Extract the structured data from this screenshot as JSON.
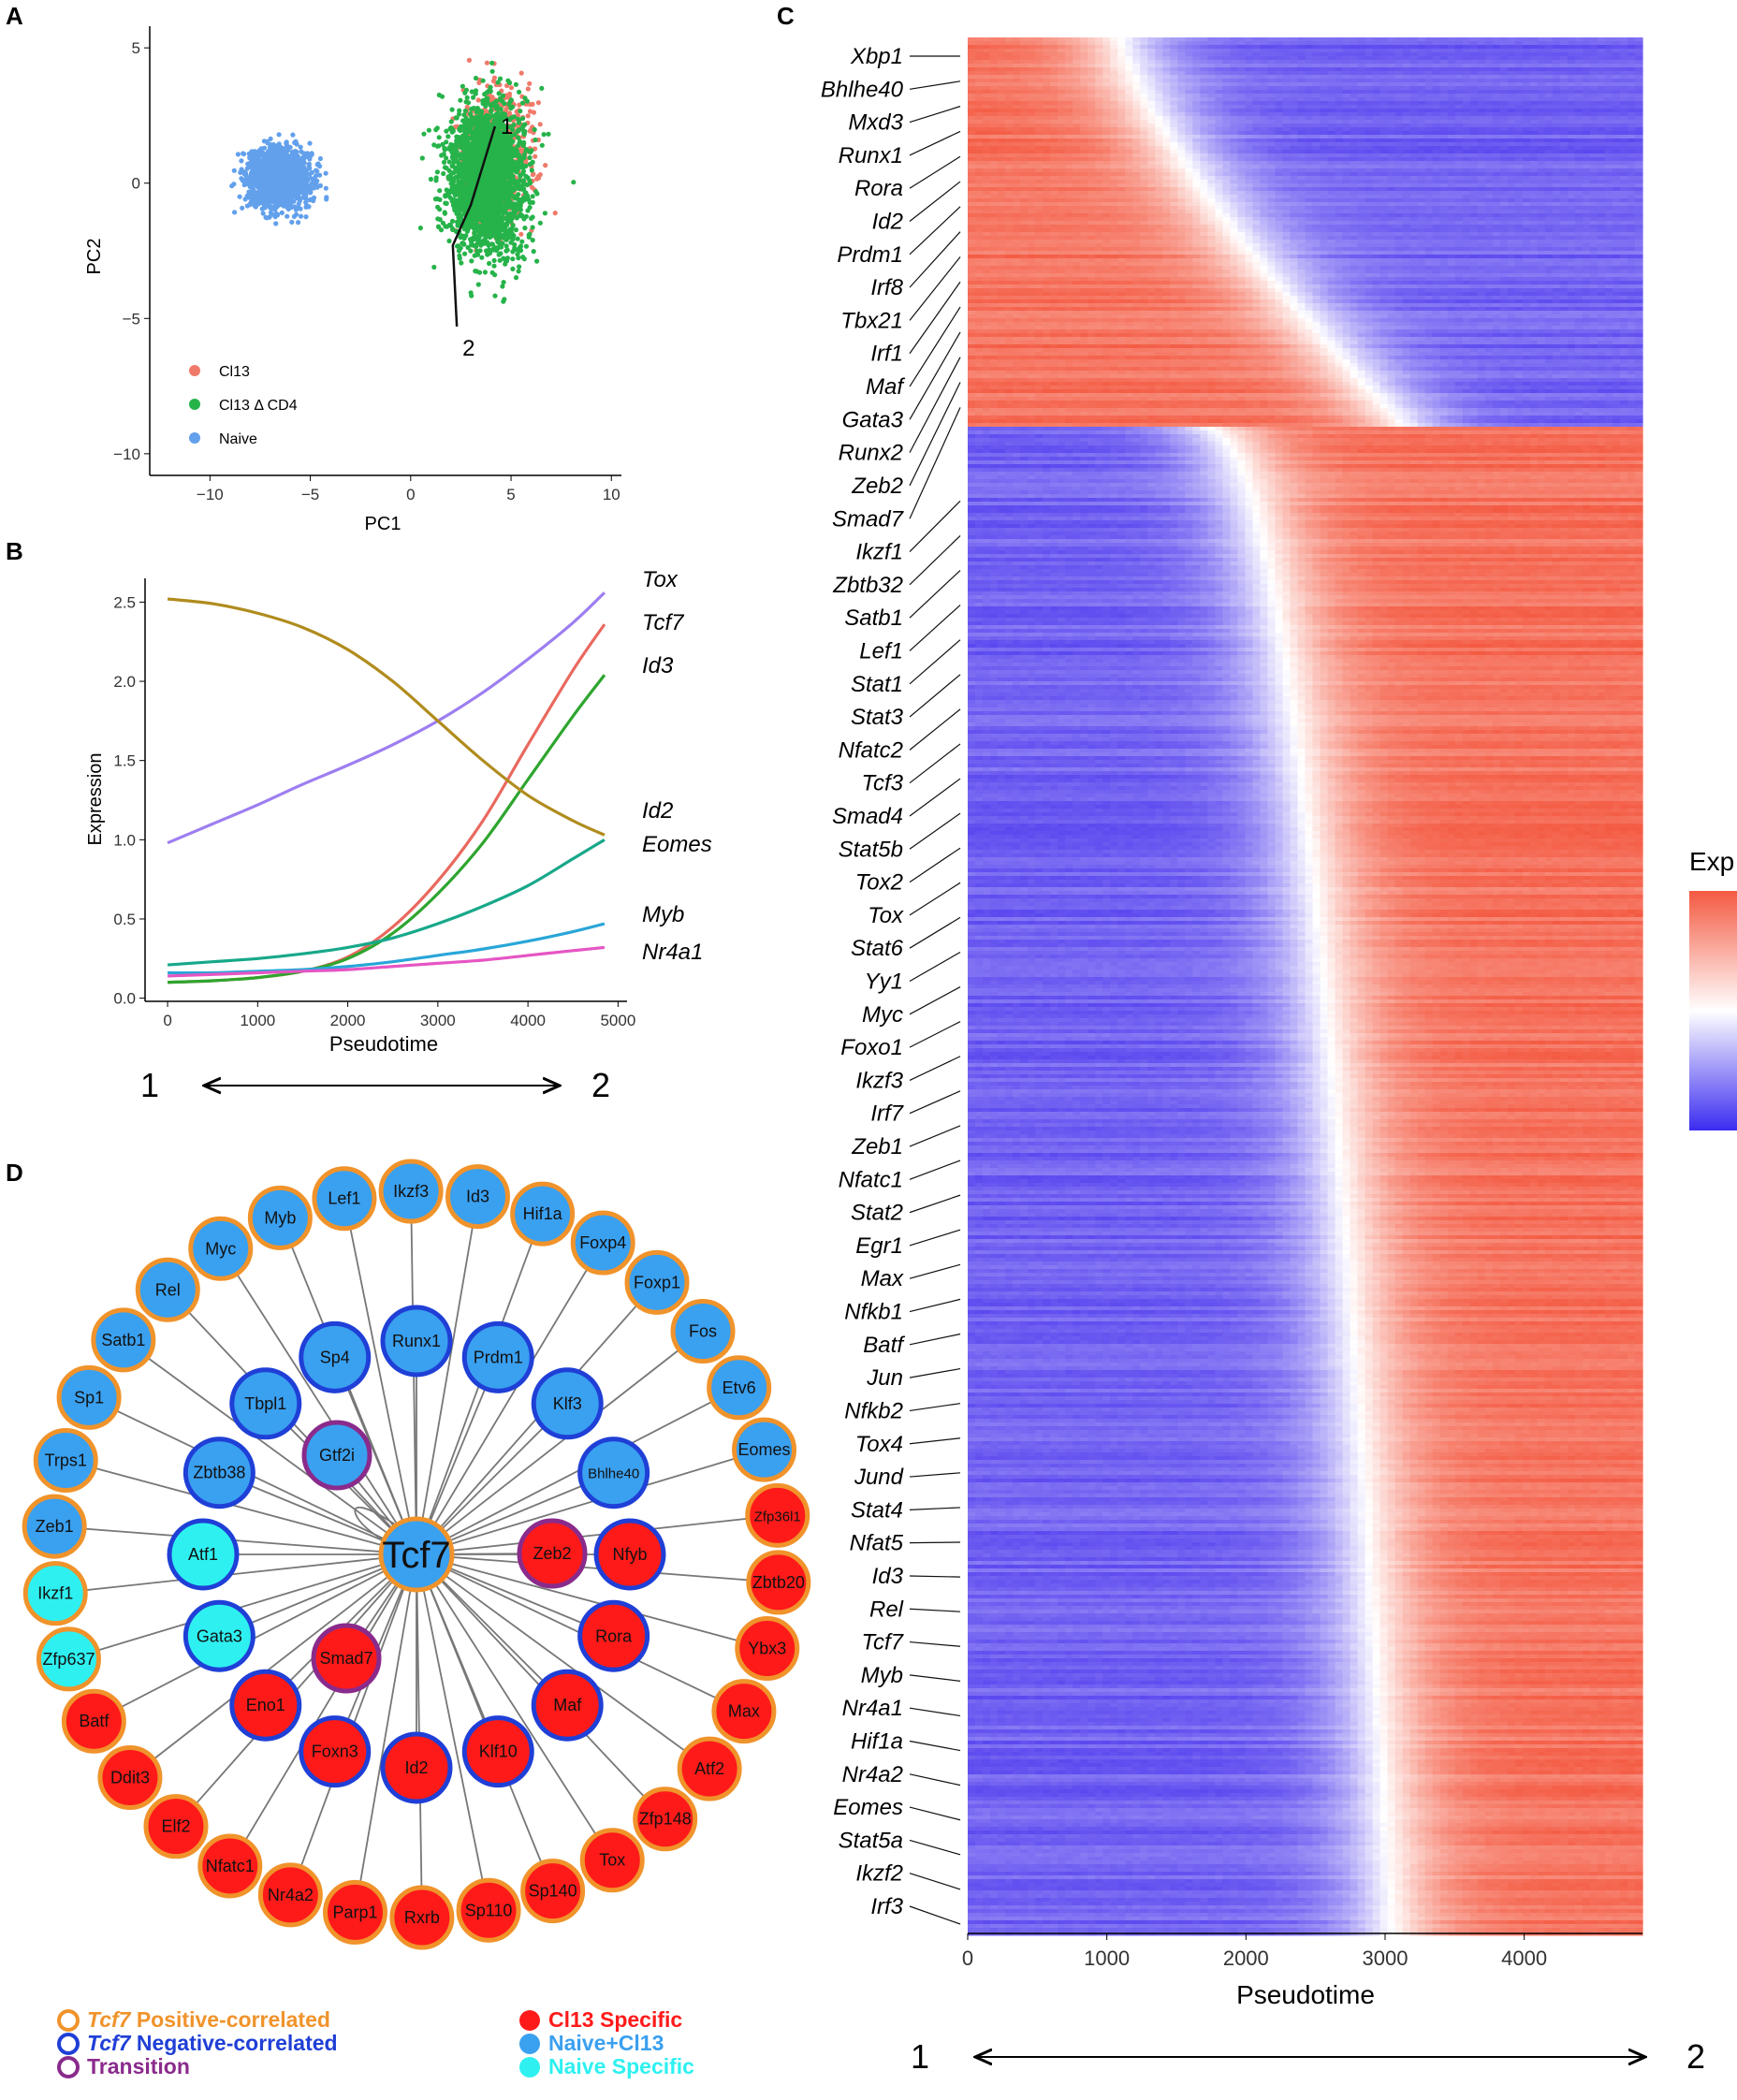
{
  "panel_letters": [
    "A",
    "B",
    "C",
    "D"
  ],
  "trajectory_ends": {
    "start": "1",
    "end": "2"
  },
  "chart_data": [
    {
      "panel": "A",
      "type": "scatter",
      "xlabel": "PC1",
      "ylabel": "PC2",
      "xlim": [
        -13,
        10.5
      ],
      "ylim": [
        -10.8,
        5.8
      ],
      "xticks": [
        -10,
        -5,
        0,
        5,
        10
      ],
      "yticks": [
        5,
        0,
        -5,
        -10
      ],
      "grid": false,
      "legend_position": "bottom-left",
      "series": [
        {
          "name": "Cl13",
          "color": "#f07a6a",
          "center": [
            4.3,
            1.2
          ],
          "spread": [
            1.6,
            2.2
          ],
          "count": 700
        },
        {
          "name": "Cl13 Δ CD4",
          "color": "#26b34a",
          "center": [
            3.8,
            0.2
          ],
          "spread": [
            1.7,
            2.4
          ],
          "count": 2600
        },
        {
          "name": "Naive",
          "color": "#62a0ec",
          "center": [
            -6.6,
            0.2
          ],
          "spread": [
            1.4,
            0.95
          ],
          "count": 1700
        }
      ],
      "trajectory": {
        "points": [
          [
            4.2,
            2.1
          ],
          [
            3.0,
            -0.8
          ],
          [
            2.1,
            -2.3
          ],
          [
            2.3,
            -5.3
          ]
        ],
        "labels": [
          {
            "text": "1",
            "x": 4.2,
            "y": 2.1
          },
          {
            "text": "2",
            "x": 2.3,
            "y": -6.1
          }
        ]
      }
    },
    {
      "panel": "B",
      "type": "line",
      "xlabel": "Pseudotime",
      "ylabel": "Expression",
      "xlim": [
        -250,
        5100
      ],
      "ylim": [
        -0.02,
        2.65
      ],
      "xticks": [
        0,
        1000,
        2000,
        3000,
        4000,
        5000
      ],
      "yticks": [
        0.0,
        0.5,
        1.0,
        1.5,
        2.0,
        2.5
      ],
      "x": [
        0,
        500,
        1000,
        1500,
        2000,
        2500,
        3000,
        3500,
        4000,
        4500,
        4850
      ],
      "series": [
        {
          "name": "Tox",
          "color": "#9d7ef0",
          "values": [
            0.98,
            1.1,
            1.22,
            1.35,
            1.47,
            1.6,
            1.75,
            1.93,
            2.14,
            2.37,
            2.56
          ]
        },
        {
          "name": "Tcf7",
          "color": "#e9695f",
          "values": [
            0.1,
            0.11,
            0.13,
            0.17,
            0.26,
            0.45,
            0.74,
            1.12,
            1.6,
            2.07,
            2.36
          ]
        },
        {
          "name": "Id3",
          "color": "#2ea52e",
          "values": [
            0.1,
            0.11,
            0.13,
            0.17,
            0.25,
            0.41,
            0.66,
            0.98,
            1.38,
            1.78,
            2.04
          ]
        },
        {
          "name": "Id2",
          "color": "#b08c1e",
          "values": [
            2.52,
            2.49,
            2.43,
            2.34,
            2.2,
            2.0,
            1.75,
            1.5,
            1.28,
            1.12,
            1.03
          ]
        },
        {
          "name": "Eomes",
          "color": "#17a88a",
          "values": [
            0.21,
            0.23,
            0.25,
            0.28,
            0.32,
            0.38,
            0.47,
            0.58,
            0.71,
            0.88,
            1.0
          ]
        },
        {
          "name": "Myb",
          "color": "#29a6d8",
          "values": [
            0.16,
            0.16,
            0.17,
            0.18,
            0.2,
            0.23,
            0.27,
            0.31,
            0.36,
            0.42,
            0.47
          ]
        },
        {
          "name": "Nr4a1",
          "color": "#e655c4",
          "values": [
            0.14,
            0.15,
            0.16,
            0.17,
            0.18,
            0.2,
            0.22,
            0.24,
            0.27,
            0.3,
            0.32
          ]
        }
      ]
    },
    {
      "panel": "C",
      "type": "heatmap",
      "xlabel": "Pseudotime",
      "xlim": [
        0,
        4850
      ],
      "xticks": [
        0,
        1000,
        2000,
        3000,
        4000
      ],
      "legend_title": "Exp",
      "colors": {
        "high": "#f45a42",
        "mid": "#ffffff",
        "low": "#5a48ef"
      },
      "gene_labels": [
        "Xbp1",
        "Bhlhe40",
        "Mxd3",
        "Runx1",
        "Rora",
        "Id2",
        "Prdm1",
        "Irf8",
        "Tbx21",
        "Irf1",
        "Maf",
        "Gata3",
        "Runx2",
        "Zeb2",
        "Smad7",
        "Ikzf1",
        "Zbtb32",
        "Satb1",
        "Lef1",
        "Stat1",
        "Stat3",
        "Nfatc2",
        "Tcf3",
        "Smad4",
        "Stat5b",
        "Tox2",
        "Tox",
        "Stat6",
        "Yy1",
        "Myc",
        "Foxo1",
        "Ikzf3",
        "Irf7",
        "Zeb1",
        "Nfatc1",
        "Stat2",
        "Egr1",
        "Max",
        "Nfkb1",
        "Batf",
        "Jun",
        "Nfkb2",
        "Tox4",
        "Jund",
        "Stat4",
        "Nfat5",
        "Id3",
        "Rel",
        "Tcf7",
        "Myb",
        "Nr4a1",
        "Hif1a",
        "Nr4a2",
        "Eomes",
        "Stat5a",
        "Ikzf2",
        "Irf3"
      ],
      "blocks": [
        {
          "direction": "decreasing",
          "row_fraction": 0.205,
          "transition_pseudotime": [
            1100,
            3150
          ]
        },
        {
          "direction": "increasing",
          "row_fraction": 0.795,
          "transition_pseudotime": [
            1700,
            3050
          ]
        }
      ]
    },
    {
      "panel": "D",
      "type": "network",
      "center": "Tcf7",
      "outer_ring": [
        {
          "label": "Lef1",
          "fill": "naive_cl13",
          "ring": "positive"
        },
        {
          "label": "Ikzf3",
          "fill": "naive_cl13",
          "ring": "positive"
        },
        {
          "label": "Id3",
          "fill": "naive_cl13",
          "ring": "positive"
        },
        {
          "label": "Hif1a",
          "fill": "naive_cl13",
          "ring": "positive"
        },
        {
          "label": "Foxp4",
          "fill": "naive_cl13",
          "ring": "positive"
        },
        {
          "label": "Foxp1",
          "fill": "naive_cl13",
          "ring": "positive"
        },
        {
          "label": "Fos",
          "fill": "naive_cl13",
          "ring": "positive"
        },
        {
          "label": "Etv6",
          "fill": "naive_cl13",
          "ring": "positive"
        },
        {
          "label": "Eomes",
          "fill": "naive_cl13",
          "ring": "positive"
        },
        {
          "label": "Zfp36l1",
          "fill": "cl13",
          "ring": "positive"
        },
        {
          "label": "Zbtb20",
          "fill": "cl13",
          "ring": "positive"
        },
        {
          "label": "Ybx3",
          "fill": "cl13",
          "ring": "positive"
        },
        {
          "label": "Max",
          "fill": "cl13",
          "ring": "positive"
        },
        {
          "label": "Atf2",
          "fill": "cl13",
          "ring": "positive"
        },
        {
          "label": "Zfp148",
          "fill": "cl13",
          "ring": "positive"
        },
        {
          "label": "Tox",
          "fill": "cl13",
          "ring": "positive"
        },
        {
          "label": "Sp140",
          "fill": "cl13",
          "ring": "positive"
        },
        {
          "label": "Sp110",
          "fill": "cl13",
          "ring": "positive"
        },
        {
          "label": "Rxrb",
          "fill": "cl13",
          "ring": "positive"
        },
        {
          "label": "Parp1",
          "fill": "cl13",
          "ring": "positive"
        },
        {
          "label": "Nr4a2",
          "fill": "cl13",
          "ring": "positive"
        },
        {
          "label": "Nfatc1",
          "fill": "cl13",
          "ring": "positive"
        },
        {
          "label": "Elf2",
          "fill": "cl13",
          "ring": "positive"
        },
        {
          "label": "Ddit3",
          "fill": "cl13",
          "ring": "positive"
        },
        {
          "label": "Batf",
          "fill": "cl13",
          "ring": "positive"
        },
        {
          "label": "Zfp637",
          "fill": "naive",
          "ring": "positive"
        },
        {
          "label": "Ikzf1",
          "fill": "naive",
          "ring": "positive"
        },
        {
          "label": "Zeb1",
          "fill": "naive_cl13",
          "ring": "positive"
        },
        {
          "label": "Trps1",
          "fill": "naive_cl13",
          "ring": "positive"
        },
        {
          "label": "Sp1",
          "fill": "naive_cl13",
          "ring": "positive"
        },
        {
          "label": "Satb1",
          "fill": "naive_cl13",
          "ring": "positive"
        },
        {
          "label": "Rel",
          "fill": "naive_cl13",
          "ring": "positive"
        },
        {
          "label": "Myc",
          "fill": "naive_cl13",
          "ring": "positive"
        },
        {
          "label": "Myb",
          "fill": "naive_cl13",
          "ring": "positive"
        }
      ],
      "inner_ring": [
        {
          "label": "Runx1",
          "fill": "naive_cl13",
          "ring": "negative"
        },
        {
          "label": "Prdm1",
          "fill": "naive_cl13",
          "ring": "negative"
        },
        {
          "label": "Klf3",
          "fill": "naive_cl13",
          "ring": "negative"
        },
        {
          "label": "Bhlhe40",
          "fill": "naive_cl13",
          "ring": "negative"
        },
        {
          "label": "Nfyb",
          "fill": "cl13",
          "ring": "negative"
        },
        {
          "label": "Rora",
          "fill": "cl13",
          "ring": "negative"
        },
        {
          "label": "Maf",
          "fill": "cl13",
          "ring": "negative"
        },
        {
          "label": "Klf10",
          "fill": "cl13",
          "ring": "negative"
        },
        {
          "label": "Id2",
          "fill": "cl13",
          "ring": "negative"
        },
        {
          "label": "Foxn3",
          "fill": "cl13",
          "ring": "negative"
        },
        {
          "label": "Eno1",
          "fill": "cl13",
          "ring": "negative"
        },
        {
          "label": "Gata3",
          "fill": "naive",
          "ring": "negative"
        },
        {
          "label": "Atf1",
          "fill": "naive",
          "ring": "negative"
        },
        {
          "label": "Zbtb38",
          "fill": "naive_cl13",
          "ring": "negative"
        },
        {
          "label": "Tbpl1",
          "fill": "naive_cl13",
          "ring": "negative"
        },
        {
          "label": "Sp4",
          "fill": "naive_cl13",
          "ring": "negative"
        }
      ],
      "transition_nodes": [
        {
          "label": "Gtf2i",
          "fill": "naive_cl13",
          "ring": "transition"
        },
        {
          "label": "Zeb2",
          "fill": "cl13",
          "ring": "transition"
        },
        {
          "label": "Smad7",
          "fill": "cl13",
          "ring": "transition"
        }
      ],
      "legend": {
        "ring_items": [
          {
            "key": "positive",
            "prefix": "Tcf7",
            "text": " Positive-correlated",
            "color": "#f0932b"
          },
          {
            "key": "negative",
            "prefix": "Tcf7",
            "text": " Negative-correlated",
            "color": "#1f3fd6"
          },
          {
            "key": "transition",
            "prefix": "",
            "text": "Transition",
            "color": "#8a2b8c"
          }
        ],
        "fill_items": [
          {
            "key": "cl13",
            "text": "Cl13 Specific",
            "color": "#ff1a1a"
          },
          {
            "key": "naive_cl13",
            "text": "Naive+Cl13",
            "color": "#3aa0f0"
          },
          {
            "key": "naive",
            "text": "Naive Specific",
            "color": "#2ff0f0"
          }
        ]
      }
    }
  ]
}
